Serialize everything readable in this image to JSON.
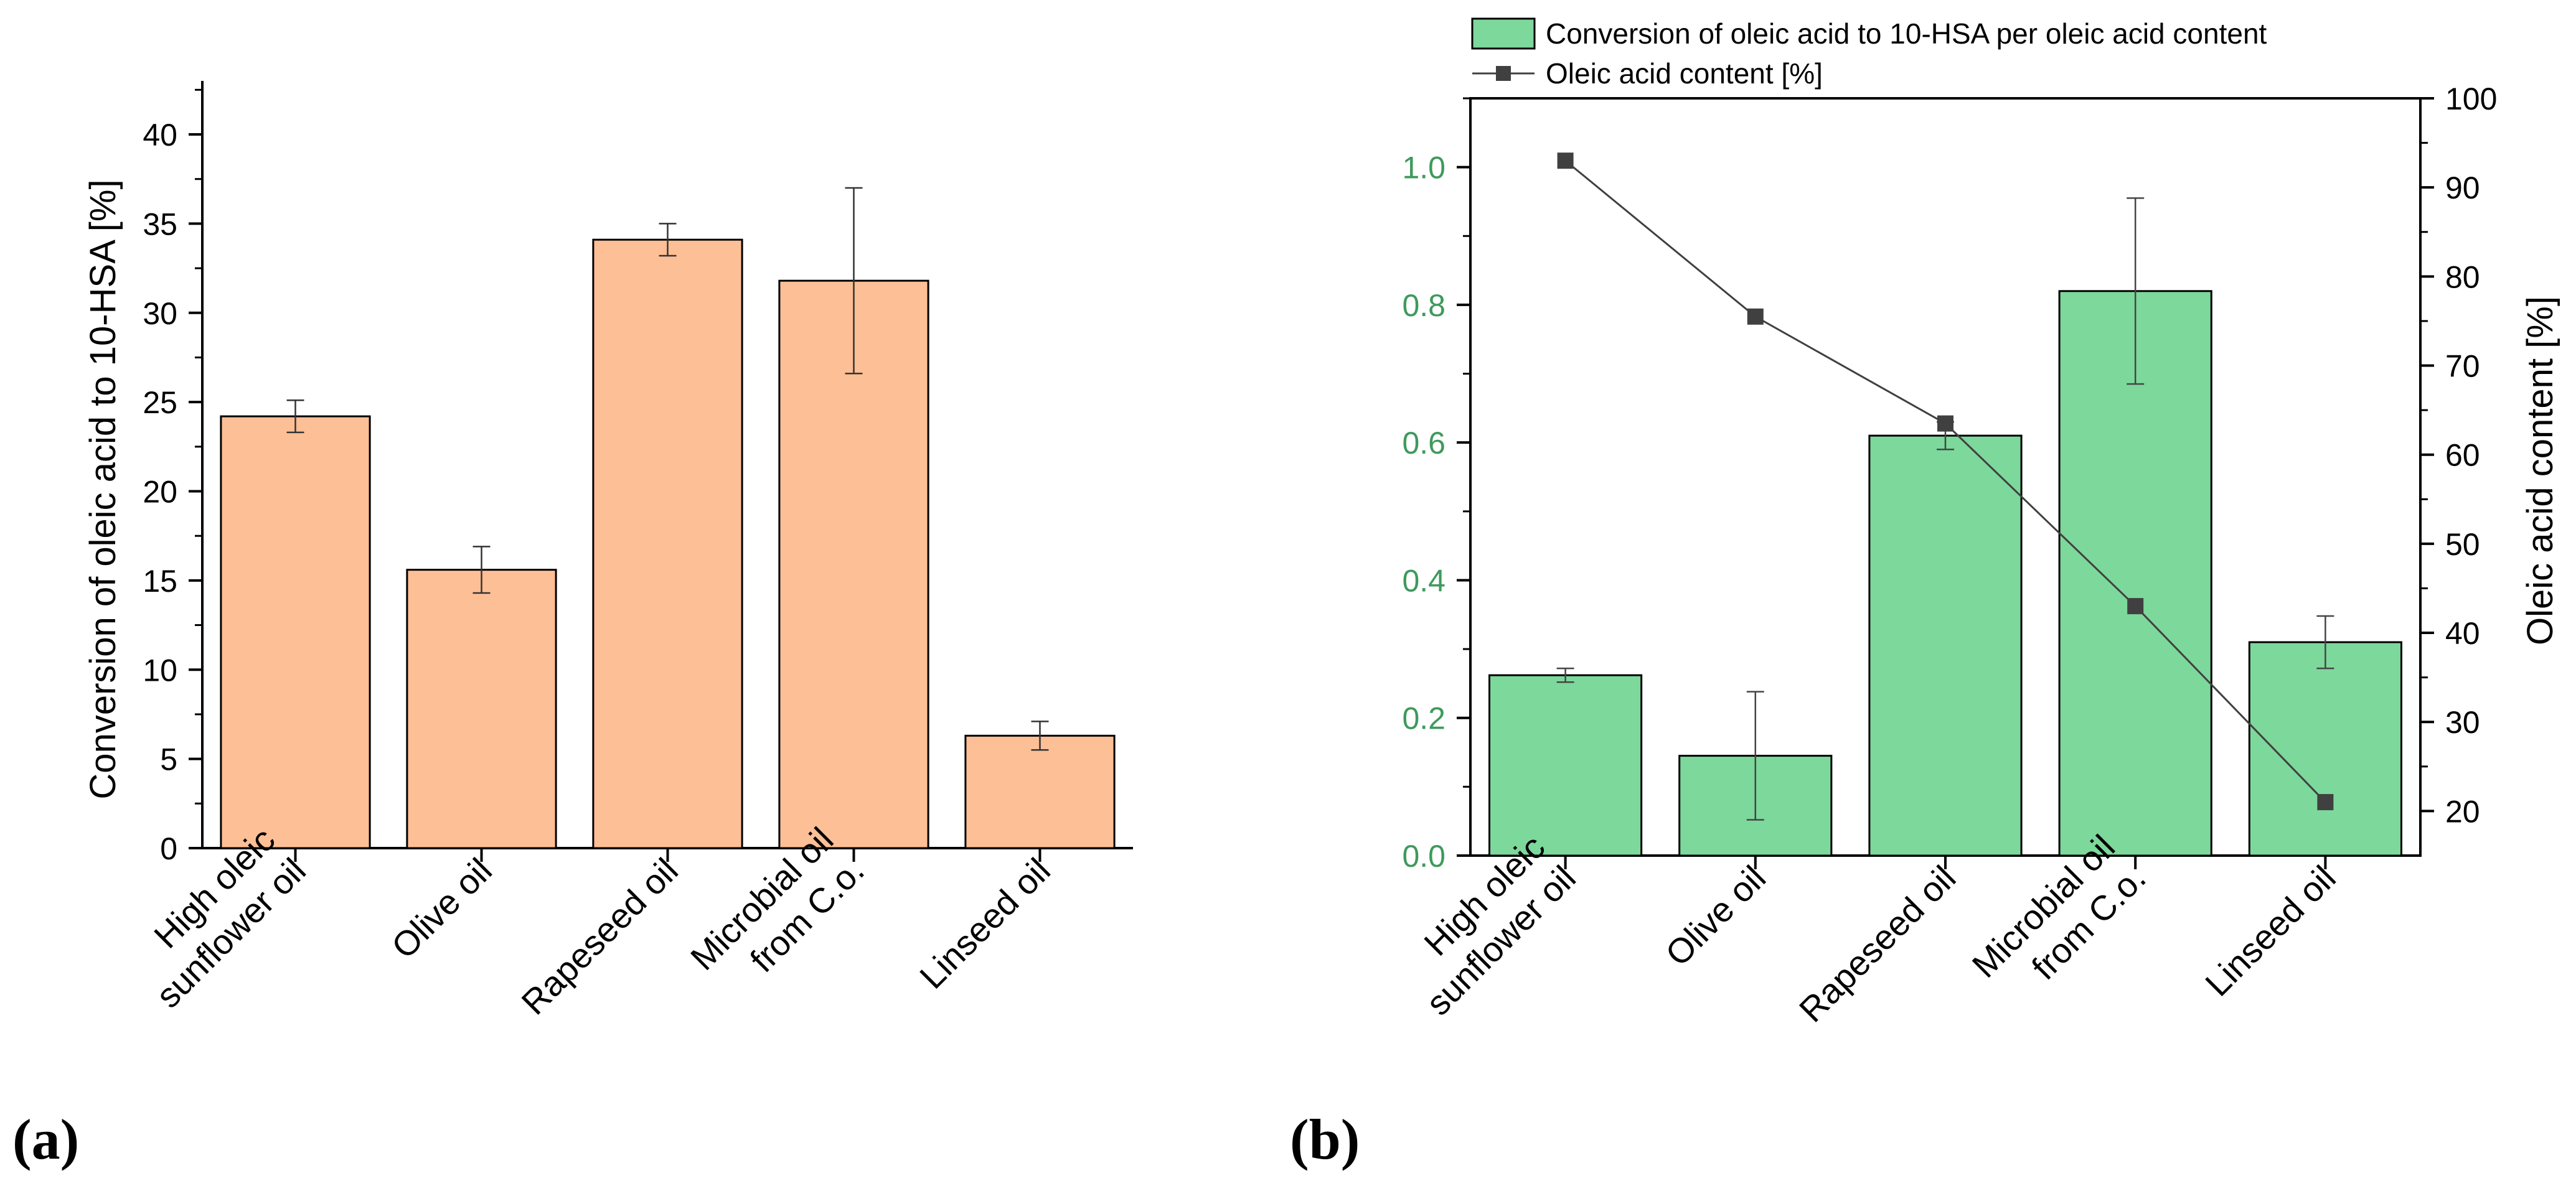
{
  "chart_data": [
    {
      "panel": "(a)",
      "type": "bar",
      "categories": [
        [
          "High oleic",
          "sunflower oil"
        ],
        [
          "Olive oil"
        ],
        [
          "Rapeseed oil"
        ],
        [
          "Microbial oil",
          "from C.o."
        ],
        [
          "Linseed oil"
        ]
      ],
      "values": [
        24.2,
        15.6,
        34.1,
        31.8,
        6.3
      ],
      "errors": [
        0.9,
        1.3,
        0.9,
        5.2,
        0.8
      ],
      "ylabel": "Conversion of oleic acid to 10-HSA [%]",
      "ylim": [
        0,
        43
      ],
      "yticks": [
        0,
        5,
        10,
        15,
        20,
        25,
        30,
        35,
        40
      ],
      "bar_color": "#FDBF96"
    },
    {
      "panel": "(b)",
      "type": "bar+line",
      "categories": [
        [
          "High oleic",
          "sunflower oil"
        ],
        [
          "Olive oil"
        ],
        [
          "Rapeseed oil"
        ],
        [
          "Microbial oil",
          "from C.o."
        ],
        [
          "Linseed oil"
        ]
      ],
      "bar_series": {
        "name": "Conversion of oleic acid to 10-HSA per oleic acid content",
        "values": [
          0.262,
          0.145,
          0.61,
          0.82,
          0.31
        ],
        "errors": [
          0.01,
          0.093,
          0.02,
          0.135,
          0.038
        ],
        "axis": "left",
        "color": "#7DD89B"
      },
      "line_series": {
        "name": "Oleic acid content [%]",
        "values": [
          93,
          75.5,
          63.5,
          43,
          21
        ],
        "axis": "right",
        "color": "#404040"
      },
      "y_left": {
        "ylim": [
          0,
          1.1
        ],
        "ticks": [
          "0.0",
          "0.2",
          "0.4",
          "0.6",
          "0.8",
          "1.0"
        ],
        "color": "#3E9A5C"
      },
      "y_right": {
        "ylabel": "Oleic acid content [%]",
        "ylim": [
          15,
          100
        ],
        "ticks": [
          "20",
          "30",
          "40",
          "50",
          "60",
          "70",
          "80",
          "90",
          "100"
        ]
      },
      "legend_position": "top"
    }
  ]
}
